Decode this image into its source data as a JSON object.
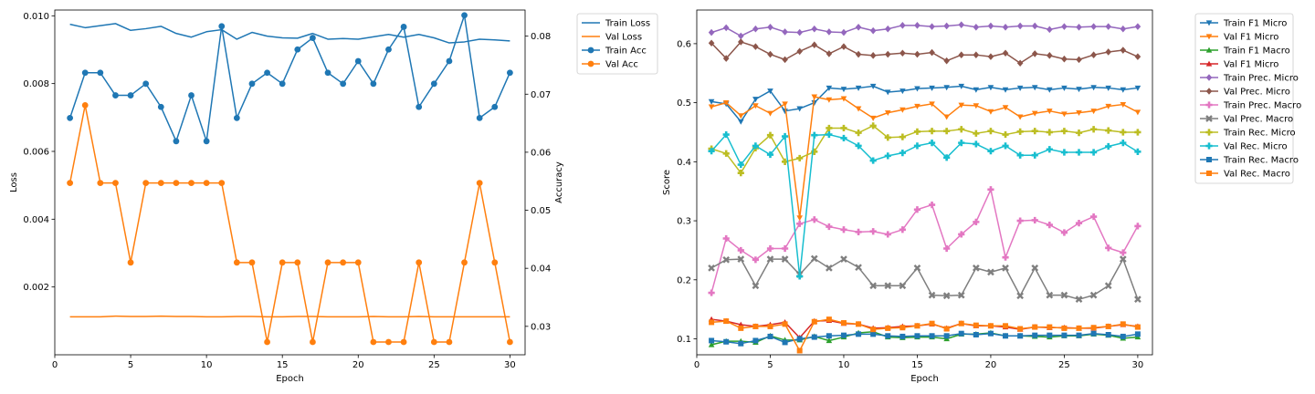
{
  "chart_data": [
    {
      "type": "line",
      "xlabel": "Epoch",
      "ylabel": "Loss",
      "y2label": "Accuracy",
      "xlim": [
        0,
        31
      ],
      "ylim": [
        0,
        0.01017
      ],
      "y2lim": [
        0.0251,
        0.0845
      ],
      "xticks": [
        "0",
        "5",
        "10",
        "15",
        "20",
        "25",
        "30"
      ],
      "yticks": [
        "0.002",
        "0.004",
        "0.006",
        "0.008",
        "0.010"
      ],
      "y2ticks": [
        "0.03",
        "0.04",
        "0.05",
        "0.06",
        "0.07",
        "0.08"
      ],
      "legend_position": "outside-right-top",
      "x": [
        1,
        2,
        3,
        4,
        5,
        6,
        7,
        8,
        9,
        10,
        11,
        12,
        13,
        14,
        15,
        16,
        17,
        18,
        19,
        20,
        21,
        22,
        23,
        24,
        25,
        26,
        27,
        28,
        29,
        30
      ],
      "series": [
        {
          "name": "Train Loss",
          "axis": "left",
          "color": "#1f77b4",
          "marker": "none",
          "values": [
            0.00975,
            0.00965,
            0.00971,
            0.00977,
            0.00957,
            0.00962,
            0.00969,
            0.00948,
            0.00937,
            0.00953,
            0.00959,
            0.00931,
            0.00951,
            0.0094,
            0.00935,
            0.00934,
            0.00948,
            0.00931,
            0.00933,
            0.00931,
            0.00938,
            0.00945,
            0.00937,
            0.00945,
            0.00935,
            0.0092,
            0.00923,
            0.00931,
            0.00929,
            0.00926
          ]
        },
        {
          "name": "Val Loss",
          "axis": "left",
          "color": "#ff7f0e",
          "marker": "none",
          "values": [
            0.00112,
            0.00112,
            0.00112,
            0.00114,
            0.00113,
            0.00113,
            0.00114,
            0.00113,
            0.00113,
            0.00112,
            0.00112,
            0.00113,
            0.00113,
            0.00112,
            0.00112,
            0.00113,
            0.00113,
            0.00112,
            0.00112,
            0.00112,
            0.00113,
            0.00112,
            0.00112,
            0.00113,
            0.00112,
            0.00112,
            0.00112,
            0.00112,
            0.00112,
            0.00112
          ]
        },
        {
          "name": "Train Acc",
          "axis": "right",
          "color": "#1f77b4",
          "marker": "circle",
          "values": [
            0.0659,
            0.0737,
            0.0737,
            0.0698,
            0.0698,
            0.0718,
            0.0678,
            0.0619,
            0.0698,
            0.0619,
            0.0817,
            0.0659,
            0.0718,
            0.0737,
            0.0718,
            0.0777,
            0.0797,
            0.0737,
            0.0718,
            0.0757,
            0.0718,
            0.0777,
            0.0816,
            0.0678,
            0.0718,
            0.0757,
            0.0836,
            0.0659,
            0.0678,
            0.0737
          ]
        },
        {
          "name": "Val Acc",
          "axis": "right",
          "color": "#ff7f0e",
          "marker": "circle",
          "values": [
            0.0547,
            0.0681,
            0.0547,
            0.0547,
            0.041,
            0.0547,
            0.0547,
            0.0547,
            0.0547,
            0.0547,
            0.0547,
            0.041,
            0.041,
            0.0273,
            0.041,
            0.041,
            0.0273,
            0.041,
            0.041,
            0.041,
            0.0273,
            0.0273,
            0.0273,
            0.041,
            0.0273,
            0.0273,
            0.041,
            0.0547,
            0.041,
            0.0273
          ]
        }
      ]
    },
    {
      "type": "line",
      "xlabel": "Epoch",
      "ylabel": "Score",
      "xlim": [
        0,
        31
      ],
      "ylim": [
        0.073,
        0.657
      ],
      "xticks": [
        "0",
        "5",
        "10",
        "15",
        "20",
        "25",
        "30"
      ],
      "yticks": [
        "0.1",
        "0.2",
        "0.3",
        "0.4",
        "0.5",
        "0.6"
      ],
      "legend_position": "outside-right-top",
      "x": [
        1,
        2,
        3,
        4,
        5,
        6,
        7,
        8,
        9,
        10,
        11,
        12,
        13,
        14,
        15,
        16,
        17,
        18,
        19,
        20,
        21,
        22,
        23,
        24,
        25,
        26,
        27,
        28,
        29,
        30
      ],
      "series": [
        {
          "name": "Train F1 Micro",
          "color": "#1f77b4",
          "marker": "triangle-down",
          "values": [
            0.502,
            0.498,
            0.468,
            0.506,
            0.52,
            0.486,
            0.49,
            0.5,
            0.525,
            0.523,
            0.525,
            0.528,
            0.518,
            0.52,
            0.524,
            0.525,
            0.526,
            0.528,
            0.522,
            0.526,
            0.522,
            0.525,
            0.526,
            0.522,
            0.525,
            0.523,
            0.526,
            0.525,
            0.522,
            0.525
          ]
        },
        {
          "name": "Val F1 Micro",
          "color": "#ff7f0e",
          "marker": "triangle-down",
          "values": [
            0.493,
            0.5,
            0.478,
            0.495,
            0.482,
            0.498,
            0.305,
            0.51,
            0.505,
            0.507,
            0.49,
            0.474,
            0.483,
            0.488,
            0.494,
            0.498,
            0.476,
            0.496,
            0.495,
            0.485,
            0.492,
            0.476,
            0.482,
            0.486,
            0.481,
            0.483,
            0.486,
            0.494,
            0.497,
            0.484
          ]
        },
        {
          "name": "Train F1 Macro",
          "color": "#2ca02c",
          "marker": "triangle-up",
          "values": [
            0.09,
            0.096,
            0.096,
            0.094,
            0.105,
            0.098,
            0.098,
            0.104,
            0.097,
            0.103,
            0.11,
            0.112,
            0.103,
            0.102,
            0.103,
            0.103,
            0.1,
            0.108,
            0.108,
            0.11,
            0.105,
            0.105,
            0.104,
            0.103,
            0.105,
            0.105,
            0.108,
            0.106,
            0.101,
            0.103
          ]
        },
        {
          "name": "Val F1 Micro",
          "color": "#d62728",
          "marker": "triangle-up",
          "values": [
            0.133,
            0.13,
            0.124,
            0.121,
            0.124,
            0.128,
            0.102,
            0.13,
            0.131,
            0.126,
            0.125,
            0.118,
            0.119,
            0.121,
            0.122,
            0.125,
            0.118,
            0.126,
            0.122,
            0.122,
            0.12,
            0.116,
            0.12,
            0.119,
            0.119,
            0.118,
            0.118,
            0.121,
            0.124,
            0.121
          ]
        },
        {
          "name": "Train Prec. Micro",
          "color": "#9467bd",
          "marker": "diamond",
          "values": [
            0.619,
            0.627,
            0.613,
            0.625,
            0.628,
            0.62,
            0.619,
            0.625,
            0.62,
            0.619,
            0.628,
            0.622,
            0.625,
            0.631,
            0.631,
            0.629,
            0.63,
            0.632,
            0.628,
            0.63,
            0.628,
            0.63,
            0.63,
            0.624,
            0.629,
            0.628,
            0.629,
            0.629,
            0.625,
            0.629
          ]
        },
        {
          "name": "Val Prec. Micro",
          "color": "#8c564b",
          "marker": "diamond",
          "values": [
            0.601,
            0.575,
            0.603,
            0.595,
            0.582,
            0.573,
            0.587,
            0.598,
            0.583,
            0.595,
            0.582,
            0.58,
            0.582,
            0.584,
            0.582,
            0.585,
            0.571,
            0.581,
            0.581,
            0.578,
            0.584,
            0.567,
            0.583,
            0.58,
            0.574,
            0.573,
            0.581,
            0.586,
            0.589,
            0.578
          ]
        },
        {
          "name": "Train Prec. Macro",
          "color": "#e377c2",
          "marker": "plus",
          "values": [
            0.178,
            0.27,
            0.25,
            0.234,
            0.253,
            0.253,
            0.295,
            0.302,
            0.29,
            0.285,
            0.281,
            0.282,
            0.277,
            0.285,
            0.319,
            0.327,
            0.253,
            0.277,
            0.298,
            0.353,
            0.238,
            0.3,
            0.301,
            0.293,
            0.28,
            0.296,
            0.307,
            0.254,
            0.246,
            0.291
          ]
        },
        {
          "name": "Val Prec. Macro",
          "color": "#7f7f7f",
          "marker": "x",
          "values": [
            0.22,
            0.234,
            0.235,
            0.19,
            0.235,
            0.235,
            0.209,
            0.236,
            0.22,
            0.235,
            0.221,
            0.19,
            0.19,
            0.19,
            0.22,
            0.174,
            0.173,
            0.174,
            0.22,
            0.213,
            0.22,
            0.173,
            0.22,
            0.174,
            0.174,
            0.167,
            0.174,
            0.19,
            0.235,
            0.167
          ]
        },
        {
          "name": "Train Rec. Micro",
          "color": "#bcbd22",
          "marker": "plus",
          "values": [
            0.422,
            0.414,
            0.381,
            0.423,
            0.445,
            0.4,
            0.406,
            0.417,
            0.457,
            0.457,
            0.449,
            0.461,
            0.441,
            0.442,
            0.451,
            0.452,
            0.452,
            0.455,
            0.448,
            0.452,
            0.446,
            0.451,
            0.452,
            0.45,
            0.452,
            0.449,
            0.455,
            0.453,
            0.45,
            0.45
          ]
        },
        {
          "name": "Val Rec. Micro",
          "color": "#17becf",
          "marker": "plus",
          "values": [
            0.418,
            0.446,
            0.395,
            0.427,
            0.412,
            0.443,
            0.206,
            0.445,
            0.446,
            0.44,
            0.427,
            0.402,
            0.41,
            0.415,
            0.427,
            0.432,
            0.407,
            0.432,
            0.43,
            0.418,
            0.427,
            0.411,
            0.411,
            0.421,
            0.416,
            0.416,
            0.416,
            0.426,
            0.432,
            0.417
          ]
        },
        {
          "name": "Train Rec. Macro",
          "color": "#1f77b4",
          "marker": "square",
          "values": [
            0.097,
            0.095,
            0.092,
            0.097,
            0.104,
            0.094,
            0.1,
            0.103,
            0.105,
            0.106,
            0.108,
            0.108,
            0.105,
            0.104,
            0.105,
            0.105,
            0.105,
            0.109,
            0.107,
            0.109,
            0.105,
            0.105,
            0.106,
            0.106,
            0.106,
            0.106,
            0.109,
            0.107,
            0.104,
            0.108
          ]
        },
        {
          "name": "Val Rec. Macro",
          "color": "#ff7f0e",
          "marker": "square",
          "values": [
            0.128,
            0.13,
            0.118,
            0.121,
            0.121,
            0.125,
            0.08,
            0.129,
            0.133,
            0.127,
            0.125,
            0.116,
            0.118,
            0.119,
            0.122,
            0.126,
            0.117,
            0.126,
            0.123,
            0.122,
            0.122,
            0.117,
            0.12,
            0.12,
            0.118,
            0.118,
            0.119,
            0.121,
            0.125,
            0.12
          ]
        }
      ]
    }
  ]
}
